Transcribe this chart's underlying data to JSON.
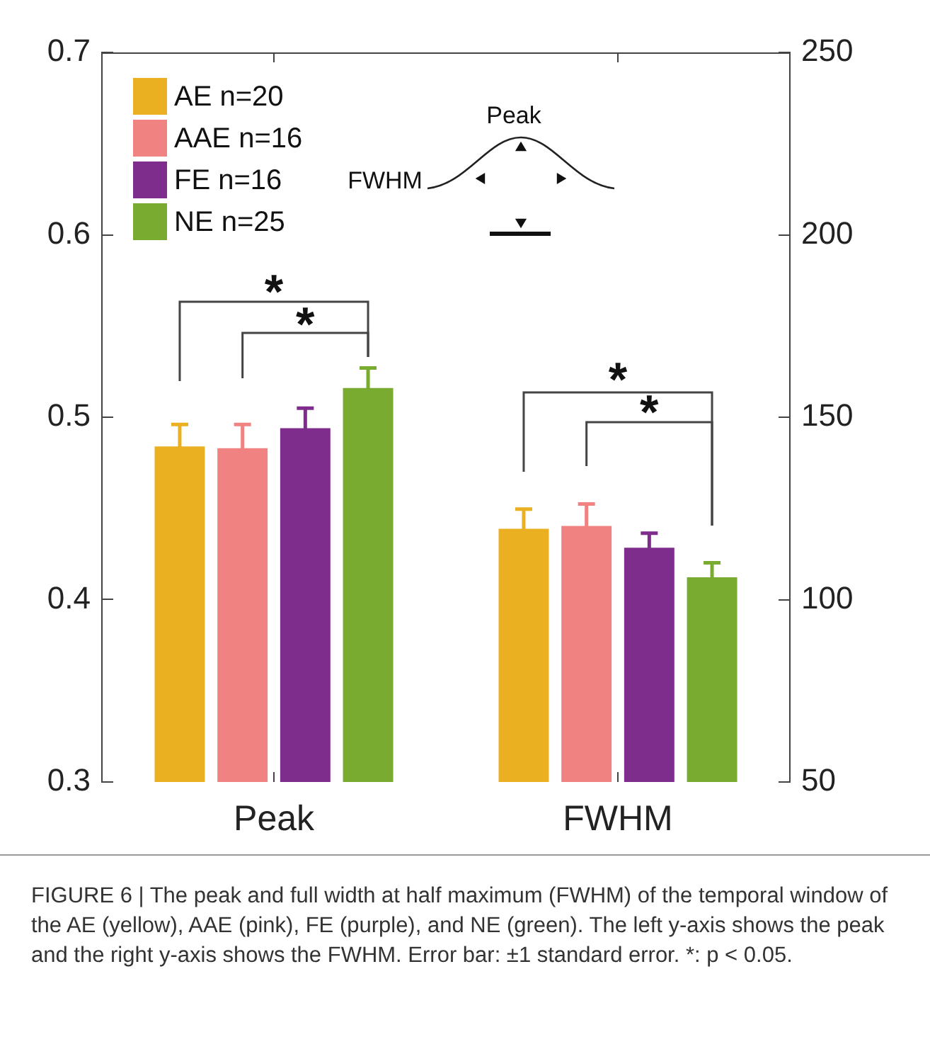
{
  "chart_data": {
    "type": "bar",
    "categories": [
      "Peak",
      "FWHM"
    ],
    "series": [
      {
        "name": "AE n=20",
        "color": "#ebb021",
        "values": [
          0.484,
          null
        ],
        "errors": [
          0.012,
          null
        ]
      },
      {
        "name": "AAE n=16",
        "color": "#f08282",
        "values": [
          0.483,
          null
        ],
        "errors": [
          0.013,
          null
        ]
      },
      {
        "name": "FE n=16",
        "color": "#7f2d8d",
        "values": [
          0.494,
          null
        ],
        "errors": [
          0.011,
          null
        ]
      },
      {
        "name": "NE n=25",
        "color": "#7aab31",
        "values": [
          0.516,
          null
        ],
        "errors": [
          0.011,
          null
        ]
      },
      {
        "color": "#ebb021",
        "axis": "y2",
        "values": [
          null,
          119.4
        ],
        "errors": [
          null,
          5.4
        ]
      },
      {
        "color": "#f08282",
        "axis": "y2",
        "values": [
          null,
          120.2
        ],
        "errors": [
          null,
          6
        ]
      },
      {
        "color": "#7f2d8d",
        "axis": "y2",
        "values": [
          null,
          114.2
        ],
        "errors": [
          null,
          4
        ]
      },
      {
        "color": "#7aab31",
        "axis": "y2",
        "values": [
          null,
          106.1
        ],
        "errors": [
          null,
          4
        ]
      }
    ],
    "ylim": [
      0.3,
      0.7
    ],
    "yticks": [
      0.3,
      0.4,
      0.5,
      0.6,
      0.7
    ],
    "y2lim": [
      50,
      250
    ],
    "y2ticks": [
      50,
      100,
      150,
      200,
      250
    ],
    "grid": false,
    "legend": "top left",
    "annotations": [
      "*",
      "*",
      "*",
      "*",
      "Peak",
      "FWHM",
      "FIGURE 6 | The peak and full width at half maximum (FWHM) of the temporal window of the AE (yellow), AAE (pink), FE (purple), and NE (green). The left y-axis shows the peak and the right y-axis shows the FWHM. Error bar: ±1 standard error. *: p < 0.05."
    ]
  }
}
